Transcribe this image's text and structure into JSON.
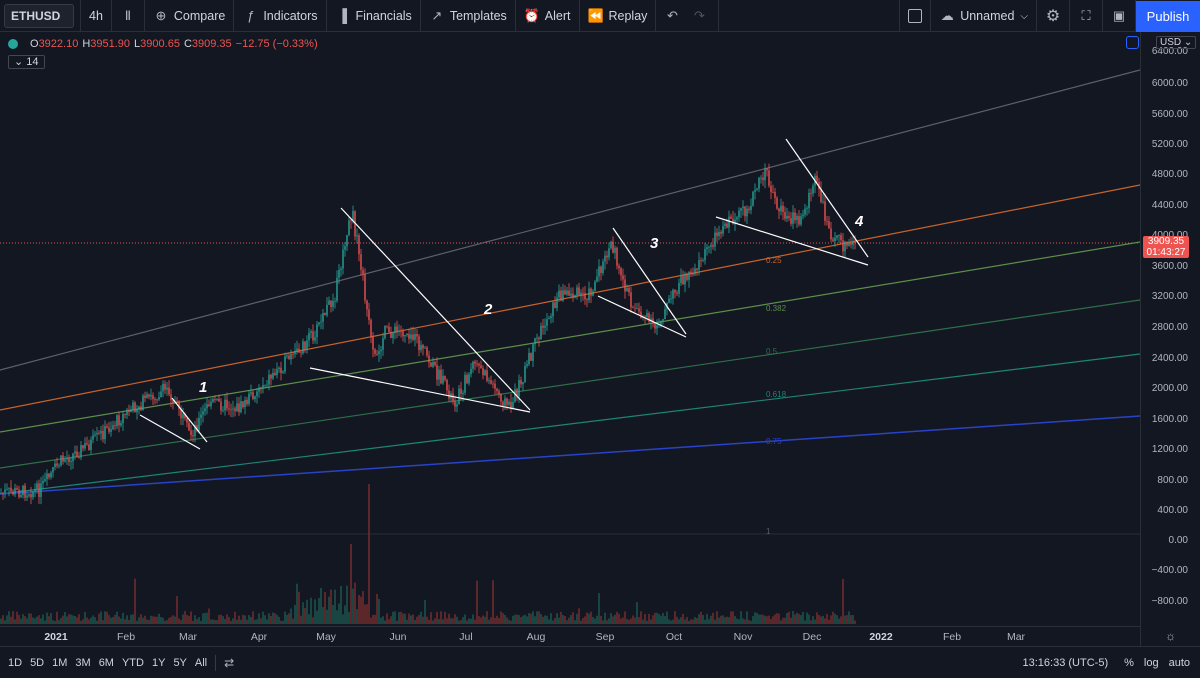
{
  "toolbar": {
    "symbol": "ETHUSD",
    "interval": "4h",
    "compare": "Compare",
    "indicators": "Indicators",
    "financials": "Financials",
    "templates": "Templates",
    "alert": "Alert",
    "replay": "Replay",
    "layout_name": "Unnamed",
    "publish": "Publish"
  },
  "legend": {
    "o_label": "O",
    "o_value": "3922.10",
    "h_label": "H",
    "h_value": "3951.90",
    "l_label": "L",
    "l_value": "3900.65",
    "c_label": "C",
    "c_value": "3909.35",
    "change": "−12.75 (−0.33%)",
    "indicator_badge": "14"
  },
  "price_axis": {
    "currency": "USD",
    "last_price": "3909.35",
    "countdown": "01:43:27",
    "labels": [
      "6400.00",
      "6000.00",
      "5600.00",
      "5200.00",
      "4800.00",
      "4400.00",
      "4000.00",
      "3600.00",
      "3200.00",
      "2800.00",
      "2400.00",
      "2000.00",
      "1600.00",
      "1200.00",
      "800.00",
      "400.00",
      "0.00",
      "−400.00",
      "−800.00"
    ]
  },
  "time_axis": {
    "labels": [
      "2021",
      "Feb",
      "Mar",
      "Apr",
      "May",
      "Jun",
      "Jul",
      "Aug",
      "Sep",
      "Oct",
      "Nov",
      "Dec",
      "2022",
      "Feb",
      "Mar"
    ]
  },
  "annotations": [
    "1",
    "2",
    "3",
    "4"
  ],
  "fib_levels": [
    "0.25",
    "0.382",
    "0.5",
    "0.618",
    "0.75",
    "1"
  ],
  "colors": {
    "up": "#26a69a",
    "down": "#ef5350",
    "accent": "#2962ff",
    "background": "#131722"
  },
  "bottombar": {
    "ranges": [
      "1D",
      "5D",
      "1M",
      "3M",
      "6M",
      "YTD",
      "1Y",
      "5Y",
      "All"
    ],
    "clock": "13:16:33 (UTC-5)",
    "percent": "%",
    "log": "log",
    "auto": "auto"
  }
}
